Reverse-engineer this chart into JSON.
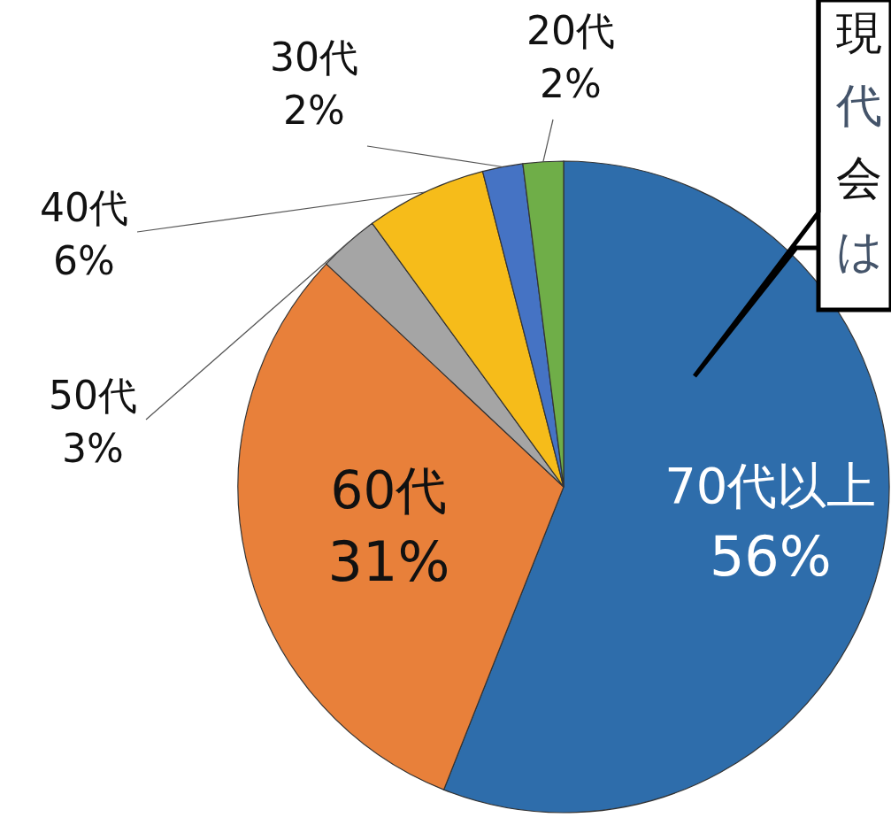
{
  "chart_data": {
    "type": "pie",
    "categories": [
      "70代以上",
      "60代",
      "50代",
      "40代",
      "30代",
      "20代"
    ],
    "values": [
      56,
      31,
      3,
      6,
      2,
      2
    ],
    "colors": [
      "#2e6dab",
      "#e8803a",
      "#a5a5a5",
      "#f6bc1a",
      "#4573c4",
      "#6fae48"
    ],
    "value_labels": [
      "56%",
      "31%",
      "3%",
      "6%",
      "2%",
      "2%"
    ],
    "annotations": [
      "現",
      "代",
      "会",
      "は"
    ]
  }
}
